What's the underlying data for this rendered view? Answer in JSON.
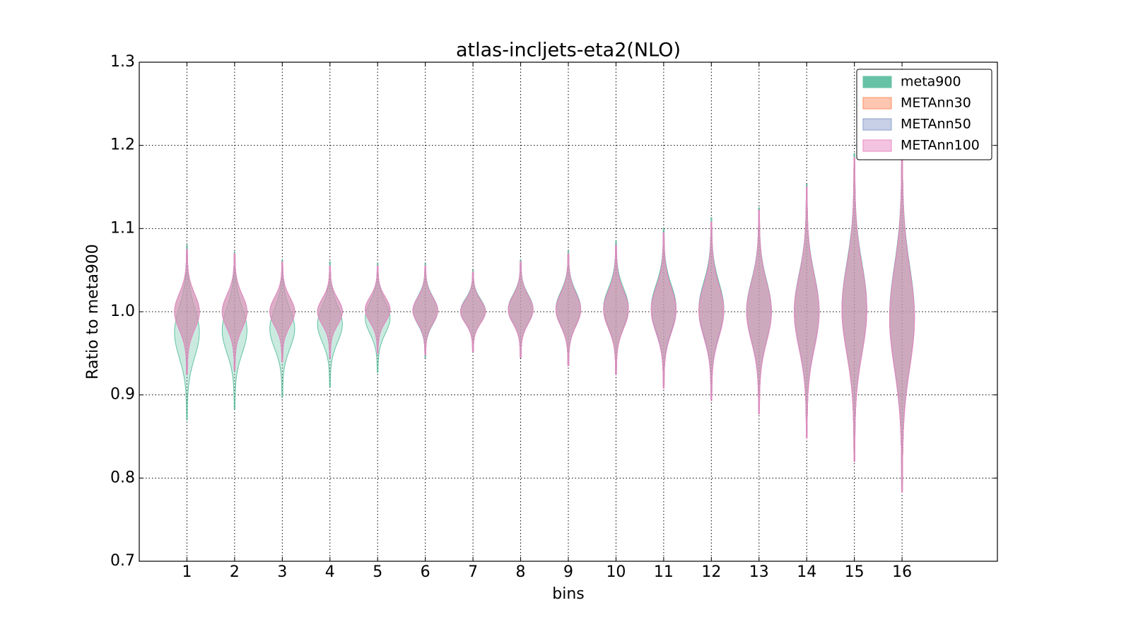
{
  "chart_data": {
    "type": "violin",
    "title": "atlas-incljets-eta2(NLO)",
    "x_label": "bins",
    "y_label": "Ratio to meta900",
    "x": [
      1,
      2,
      3,
      4,
      5,
      6,
      7,
      8,
      9,
      10,
      11,
      12,
      13,
      14,
      15,
      16
    ],
    "xlim": [
      0,
      18
    ],
    "xticks": [
      1,
      2,
      3,
      4,
      5,
      6,
      7,
      8,
      9,
      10,
      11,
      12,
      13,
      14,
      15,
      16
    ],
    "ylim": [
      0.7,
      1.3
    ],
    "yticks": [
      0.7,
      0.8,
      0.9,
      {
        "value": 1,
        "label": "1.0"
      },
      1.1,
      1.2,
      1.3
    ],
    "grid": true,
    "legend": "upper right",
    "series": [
      {
        "name": "meta900",
        "color": "#66c2a5",
        "min": [
          0.87,
          0.883,
          0.897,
          0.91,
          0.927,
          0.945,
          0.952,
          0.945,
          0.935,
          0.925,
          0.91,
          0.895,
          0.878,
          0.85,
          0.82,
          0.785
        ],
        "max": [
          1.08,
          1.072,
          1.062,
          1.06,
          1.058,
          1.058,
          1.05,
          1.062,
          1.073,
          1.085,
          1.1,
          1.113,
          1.125,
          1.153,
          1.19,
          1.205
        ]
      },
      {
        "name": "METAnn30",
        "color": "#fc8d62",
        "min": [
          0.925,
          0.93,
          0.94,
          0.945,
          0.95,
          0.948,
          0.952,
          0.945,
          0.935,
          0.925,
          0.91,
          0.895,
          0.878,
          0.85,
          0.82,
          0.785
        ],
        "max": [
          1.075,
          1.07,
          1.06,
          1.055,
          1.055,
          1.055,
          1.048,
          1.06,
          1.07,
          1.08,
          1.095,
          1.108,
          1.122,
          1.15,
          1.185,
          1.2
        ]
      },
      {
        "name": "METAnn50",
        "color": "#8da0cb",
        "min": [
          0.925,
          0.93,
          0.94,
          0.945,
          0.95,
          0.948,
          0.952,
          0.945,
          0.935,
          0.925,
          0.91,
          0.895,
          0.878,
          0.85,
          0.82,
          0.785
        ],
        "max": [
          1.075,
          1.07,
          1.06,
          1.055,
          1.055,
          1.055,
          1.048,
          1.06,
          1.07,
          1.08,
          1.095,
          1.108,
          1.122,
          1.15,
          1.185,
          1.2
        ]
      },
      {
        "name": "METAnn100",
        "color": "#e78ac3",
        "min": [
          0.925,
          0.93,
          0.94,
          0.945,
          0.95,
          0.948,
          0.952,
          0.945,
          0.935,
          0.925,
          0.908,
          0.893,
          0.877,
          0.848,
          0.82,
          0.783
        ],
        "max": [
          1.075,
          1.07,
          1.06,
          1.055,
          1.055,
          1.055,
          1.048,
          1.06,
          1.07,
          1.08,
          1.095,
          1.108,
          1.122,
          1.15,
          1.185,
          1.2
        ]
      }
    ]
  }
}
